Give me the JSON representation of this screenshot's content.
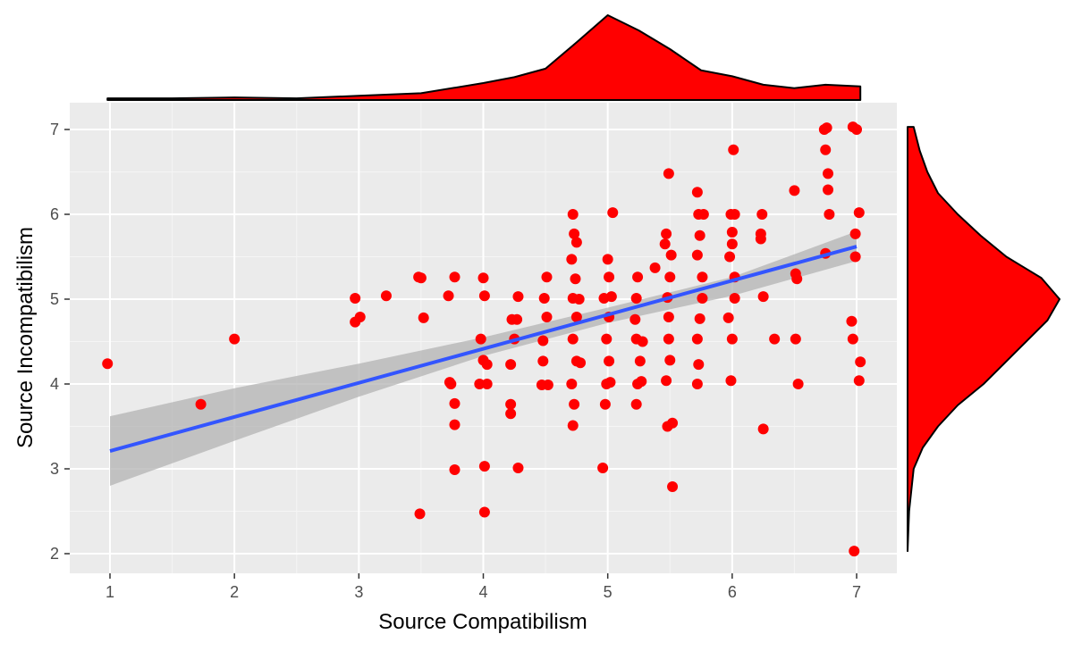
{
  "chart_data": {
    "type": "scatter",
    "xlabel": "Source Compatibilism",
    "ylabel": "Source Incompatibilism",
    "xlim": [
      0.67,
      7.33
    ],
    "ylim": [
      1.8,
      7.3
    ],
    "xticks": [
      "1",
      "2",
      "3",
      "4",
      "5",
      "6",
      "7"
    ],
    "yticks": [
      "2",
      "3",
      "4",
      "5",
      "6",
      "7"
    ],
    "grid": true,
    "point_color": "#ff0000",
    "line_color": "#3355ff",
    "band_color": "#b3b3b3",
    "points": [
      [
        0.98,
        4.24
      ],
      [
        1.73,
        3.76
      ],
      [
        2.0,
        4.53
      ],
      [
        2.97,
        5.01
      ],
      [
        2.97,
        4.73
      ],
      [
        3.01,
        4.79
      ],
      [
        3.22,
        5.04
      ],
      [
        3.48,
        5.26
      ],
      [
        3.5,
        5.25
      ],
      [
        3.52,
        4.78
      ],
      [
        3.49,
        2.47
      ],
      [
        3.72,
        5.04
      ],
      [
        3.73,
        4.02
      ],
      [
        3.74,
        4.0
      ],
      [
        3.77,
        5.26
      ],
      [
        3.77,
        3.77
      ],
      [
        3.77,
        3.52
      ],
      [
        3.77,
        2.99
      ],
      [
        4.0,
        5.25
      ],
      [
        4.01,
        5.04
      ],
      [
        3.98,
        4.53
      ],
      [
        4.0,
        4.28
      ],
      [
        4.03,
        4.23
      ],
      [
        3.97,
        4.0
      ],
      [
        4.03,
        4.0
      ],
      [
        4.01,
        3.03
      ],
      [
        4.01,
        2.49
      ],
      [
        4.23,
        4.76
      ],
      [
        4.27,
        4.76
      ],
      [
        4.25,
        4.53
      ],
      [
        4.22,
        4.23
      ],
      [
        4.22,
        3.76
      ],
      [
        4.22,
        3.65
      ],
      [
        4.28,
        5.03
      ],
      [
        4.28,
        3.01
      ],
      [
        4.51,
        5.26
      ],
      [
        4.49,
        5.01
      ],
      [
        4.51,
        4.79
      ],
      [
        4.48,
        4.51
      ],
      [
        4.48,
        4.27
      ],
      [
        4.47,
        3.99
      ],
      [
        4.52,
        3.99
      ],
      [
        4.72,
        6.0
      ],
      [
        4.73,
        5.77
      ],
      [
        4.75,
        5.67
      ],
      [
        4.71,
        5.47
      ],
      [
        4.74,
        5.24
      ],
      [
        4.72,
        5.01
      ],
      [
        4.75,
        4.79
      ],
      [
        4.72,
        4.53
      ],
      [
        4.75,
        4.27
      ],
      [
        4.71,
        4.0
      ],
      [
        4.73,
        3.76
      ],
      [
        4.72,
        3.51
      ],
      [
        4.78,
        4.25
      ],
      [
        4.77,
        5.0
      ],
      [
        5.04,
        6.02
      ],
      [
        5.0,
        5.47
      ],
      [
        5.01,
        5.26
      ],
      [
        4.97,
        5.01
      ],
      [
        5.01,
        4.79
      ],
      [
        4.99,
        4.53
      ],
      [
        5.01,
        4.27
      ],
      [
        4.99,
        4.0
      ],
      [
        4.98,
        3.76
      ],
      [
        4.96,
        3.01
      ],
      [
        5.03,
        5.03
      ],
      [
        5.02,
        4.02
      ],
      [
        5.24,
        5.26
      ],
      [
        5.23,
        5.01
      ],
      [
        5.22,
        4.76
      ],
      [
        5.23,
        4.53
      ],
      [
        5.26,
        4.27
      ],
      [
        5.24,
        4.0
      ],
      [
        5.23,
        3.76
      ],
      [
        5.27,
        4.03
      ],
      [
        5.28,
        4.5
      ],
      [
        5.49,
        6.48
      ],
      [
        5.47,
        5.77
      ],
      [
        5.46,
        5.65
      ],
      [
        5.51,
        5.52
      ],
      [
        5.5,
        5.26
      ],
      [
        5.48,
        5.02
      ],
      [
        5.49,
        4.79
      ],
      [
        5.49,
        4.53
      ],
      [
        5.5,
        4.28
      ],
      [
        5.47,
        4.04
      ],
      [
        5.48,
        3.5
      ],
      [
        5.52,
        3.54
      ],
      [
        5.52,
        2.79
      ],
      [
        5.38,
        5.37
      ],
      [
        5.72,
        6.26
      ],
      [
        5.73,
        6.0
      ],
      [
        5.77,
        6.0
      ],
      [
        5.74,
        5.75
      ],
      [
        5.72,
        5.52
      ],
      [
        5.76,
        5.26
      ],
      [
        5.76,
        5.01
      ],
      [
        5.74,
        4.77
      ],
      [
        5.72,
        4.53
      ],
      [
        5.73,
        4.23
      ],
      [
        5.72,
        4.0
      ],
      [
        6.01,
        6.76
      ],
      [
        5.99,
        6.0
      ],
      [
        6.02,
        6.0
      ],
      [
        6.0,
        5.79
      ],
      [
        6.0,
        5.65
      ],
      [
        5.98,
        5.5
      ],
      [
        6.02,
        5.26
      ],
      [
        6.02,
        5.01
      ],
      [
        5.97,
        4.78
      ],
      [
        6.0,
        4.53
      ],
      [
        5.99,
        4.04
      ],
      [
        6.24,
        6.0
      ],
      [
        6.23,
        5.77
      ],
      [
        6.23,
        5.71
      ],
      [
        6.25,
        5.03
      ],
      [
        6.34,
        4.53
      ],
      [
        6.25,
        3.47
      ],
      [
        6.5,
        6.28
      ],
      [
        6.52,
        5.24
      ],
      [
        6.51,
        5.3
      ],
      [
        6.51,
        4.53
      ],
      [
        6.53,
        4.0
      ],
      [
        6.74,
        7.0
      ],
      [
        6.76,
        7.02
      ],
      [
        6.75,
        6.76
      ],
      [
        6.77,
        6.48
      ],
      [
        6.77,
        6.29
      ],
      [
        6.78,
        6.0
      ],
      [
        6.75,
        5.54
      ],
      [
        6.97,
        7.03
      ],
      [
        7.0,
        7.0
      ],
      [
        6.99,
        5.77
      ],
      [
        6.99,
        5.5
      ],
      [
        6.96,
        4.74
      ],
      [
        6.97,
        4.53
      ],
      [
        7.03,
        4.26
      ],
      [
        7.02,
        4.04
      ],
      [
        7.02,
        6.02
      ],
      [
        6.98,
        2.03
      ]
    ],
    "regression": {
      "x": [
        1,
        7
      ],
      "y": [
        3.21,
        5.62
      ]
    },
    "confidence_band": {
      "x": [
        1,
        2,
        3,
        4,
        5,
        6,
        7
      ],
      "lower": [
        2.8,
        3.33,
        3.85,
        4.33,
        4.72,
        5.04,
        5.45
      ],
      "upper": [
        3.62,
        3.95,
        4.24,
        4.55,
        4.9,
        5.26,
        5.8
      ]
    },
    "x_density": {
      "x": [
        0.98,
        1.5,
        2,
        2.5,
        3,
        3.5,
        4,
        4.25,
        4.5,
        4.75,
        5,
        5.25,
        5.5,
        5.75,
        6,
        6.25,
        6.5,
        6.75,
        7.03
      ],
      "d": [
        0.02,
        0.02,
        0.03,
        0.02,
        0.05,
        0.08,
        0.2,
        0.27,
        0.37,
        0.68,
        1.0,
        0.82,
        0.6,
        0.35,
        0.28,
        0.18,
        0.14,
        0.18,
        0.16
      ]
    },
    "y_density": {
      "y": [
        2.03,
        2.5,
        3,
        3.25,
        3.5,
        3.75,
        4,
        4.25,
        4.5,
        4.75,
        5,
        5.25,
        5.5,
        5.75,
        6,
        6.25,
        6.5,
        6.75,
        7.03
      ],
      "d": [
        0.0,
        0.01,
        0.04,
        0.1,
        0.2,
        0.33,
        0.5,
        0.64,
        0.78,
        0.92,
        1.0,
        0.88,
        0.65,
        0.48,
        0.33,
        0.2,
        0.13,
        0.08,
        0.04
      ]
    }
  }
}
